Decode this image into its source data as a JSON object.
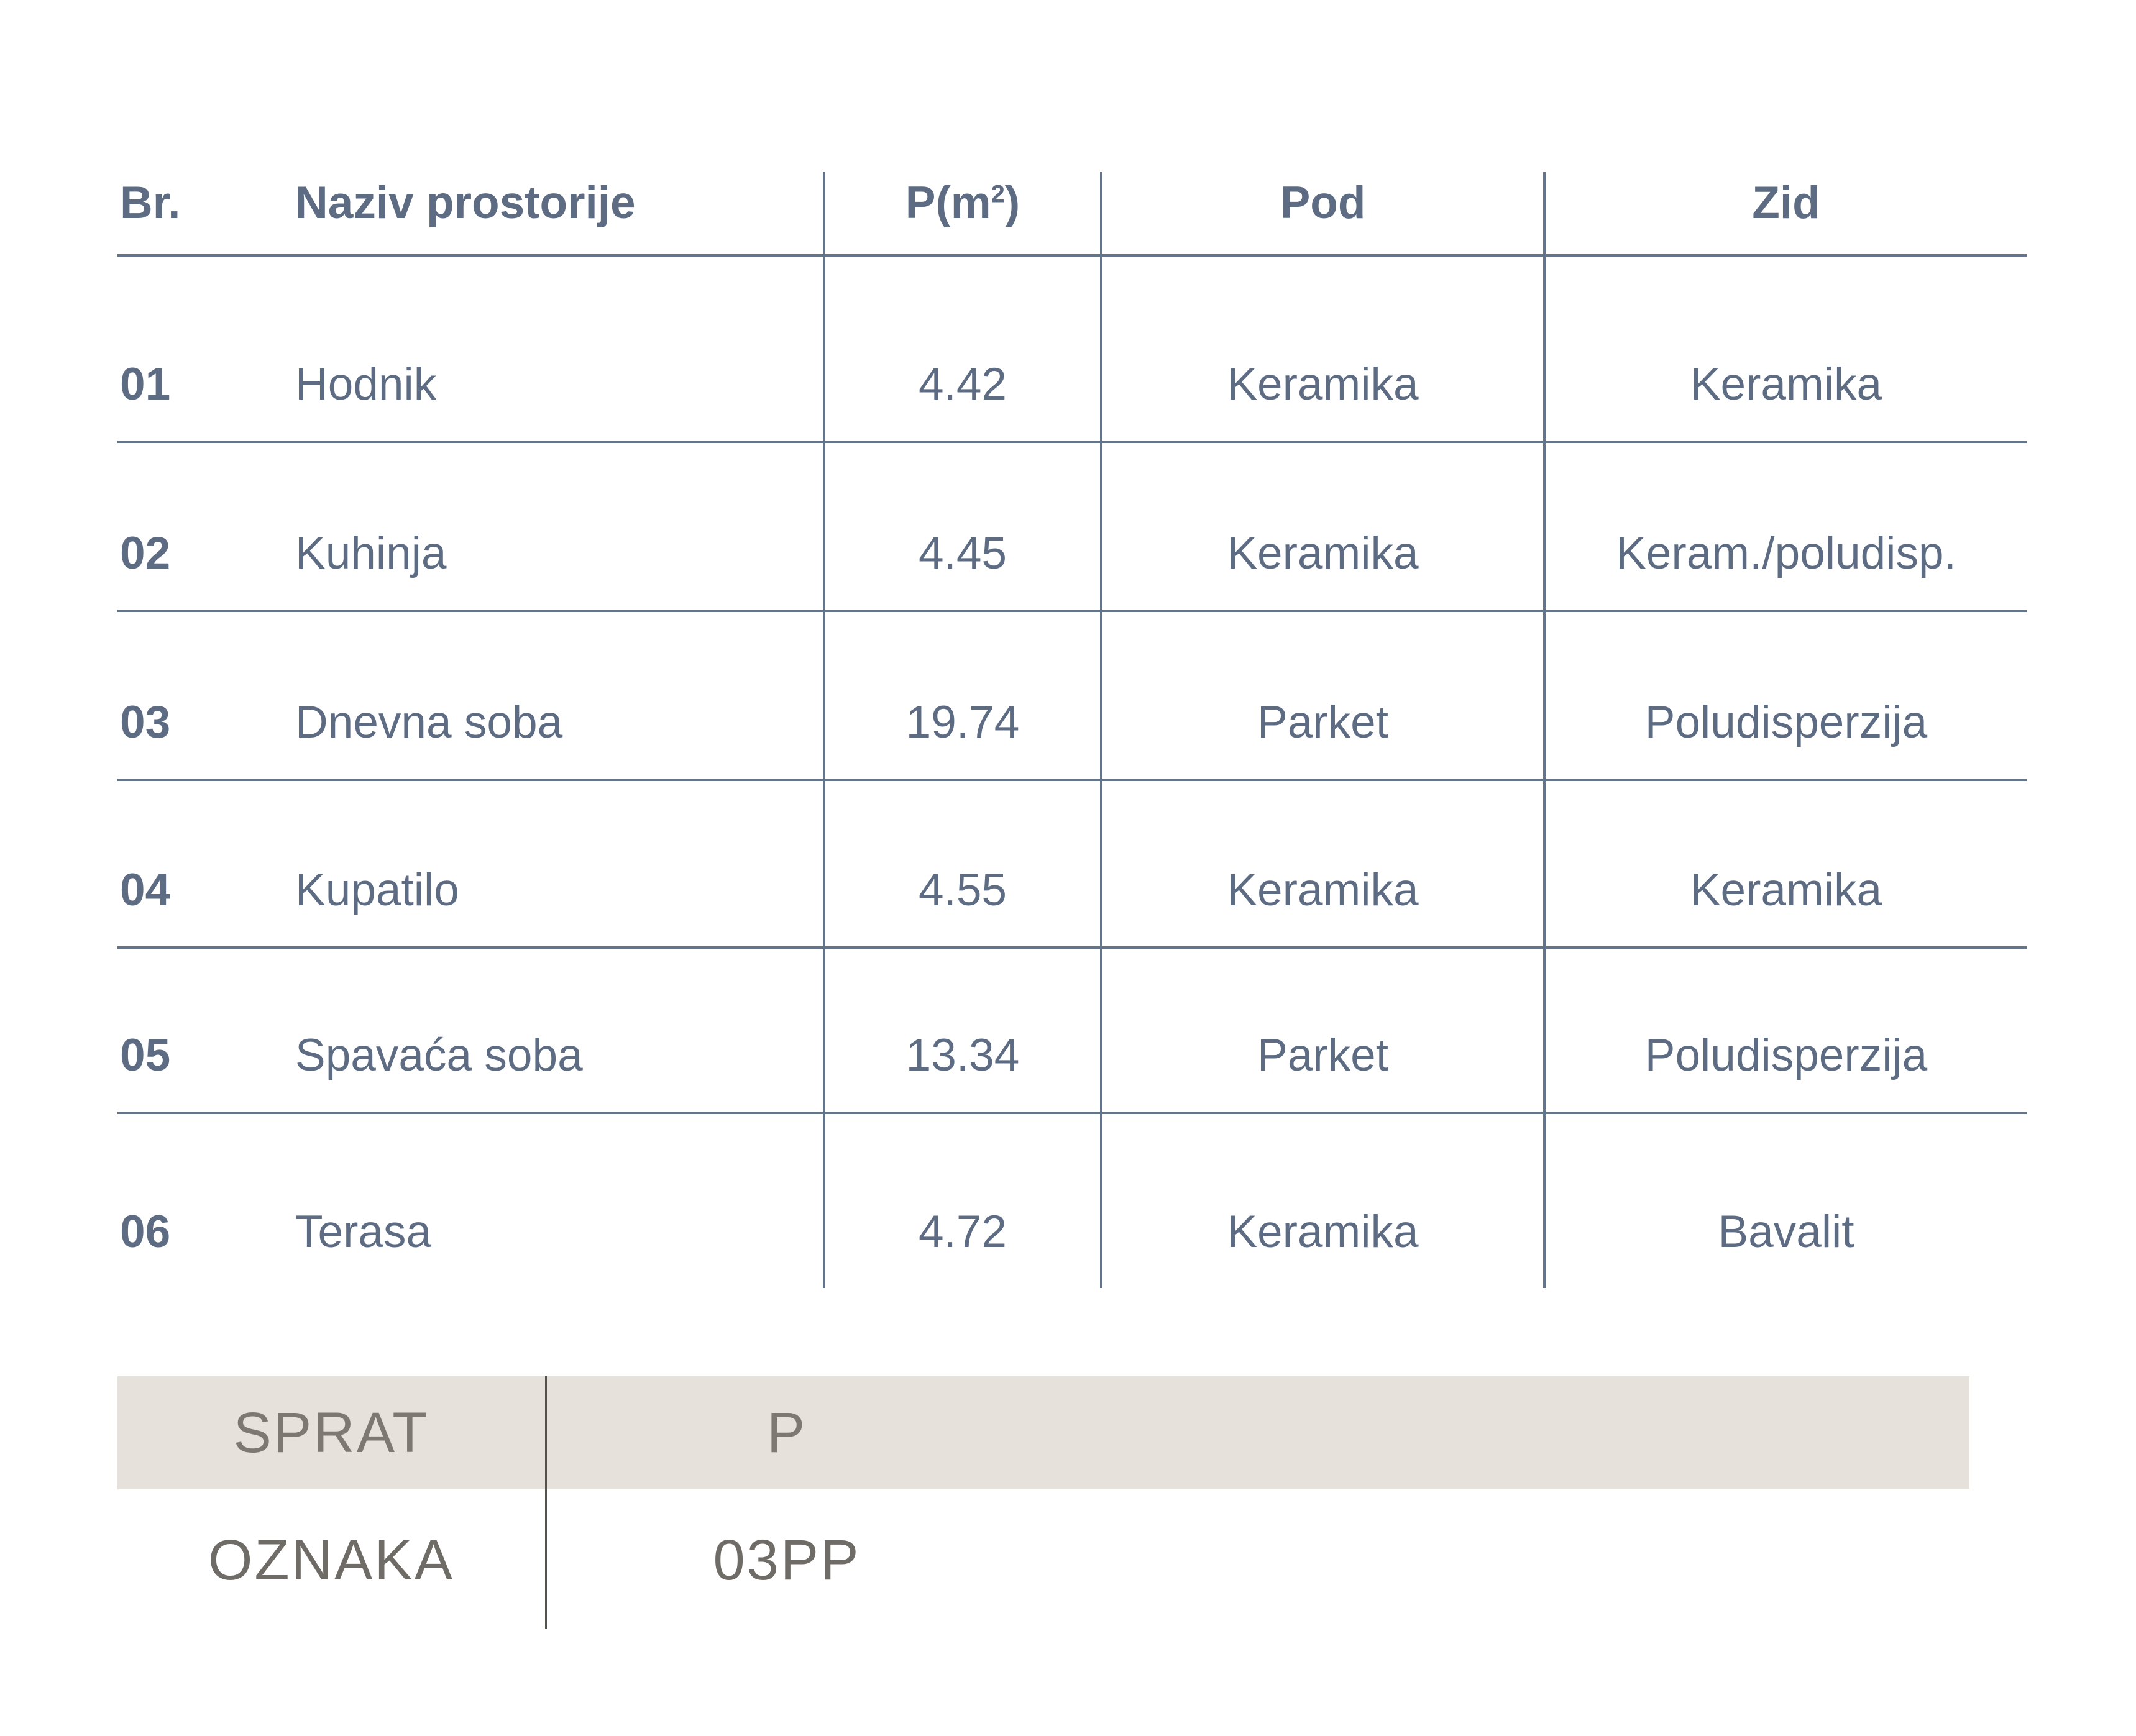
{
  "colors": {
    "table_text": "#5d6c83",
    "table_line": "#64748a",
    "footer_bg": "#e6e2db",
    "footer_label_text": "#7d7871",
    "footer_value_text": "#6f6b66",
    "footer_divider": "#54514d",
    "background": "#ffffff"
  },
  "table": {
    "headers": {
      "br": "Br.",
      "naziv": "Naziv prostorije",
      "p_prefix": "P(m",
      "p_sup": "2",
      "p_suffix": ")",
      "pod": "Pod",
      "zid": "Zid"
    },
    "rows": [
      {
        "br": "01",
        "naziv": "Hodnik",
        "p": "4.42",
        "pod": "Keramika",
        "zid": "Keramika"
      },
      {
        "br": "02",
        "naziv": "Kuhinja",
        "p": "4.45",
        "pod": "Keramika",
        "zid": "Keram./poludisp."
      },
      {
        "br": "03",
        "naziv": "Dnevna soba",
        "p": "19.74",
        "pod": "Parket",
        "zid": "Poludisperzija"
      },
      {
        "br": "04",
        "naziv": "Kupatilo",
        "p": "4.55",
        "pod": "Keramika",
        "zid": "Keramika"
      },
      {
        "br": "05",
        "naziv": "Spavaća soba",
        "p": "13.34",
        "pod": "Parket",
        "zid": "Poludisperzija"
      },
      {
        "br": "06",
        "naziv": "Terasa",
        "p": "4.72",
        "pod": "Keramika",
        "zid": "Bavalit"
      }
    ]
  },
  "footer": {
    "rows": [
      {
        "label": "SPRAT",
        "value": "P"
      },
      {
        "label": "OZNAKA",
        "value": "03PP"
      }
    ]
  }
}
